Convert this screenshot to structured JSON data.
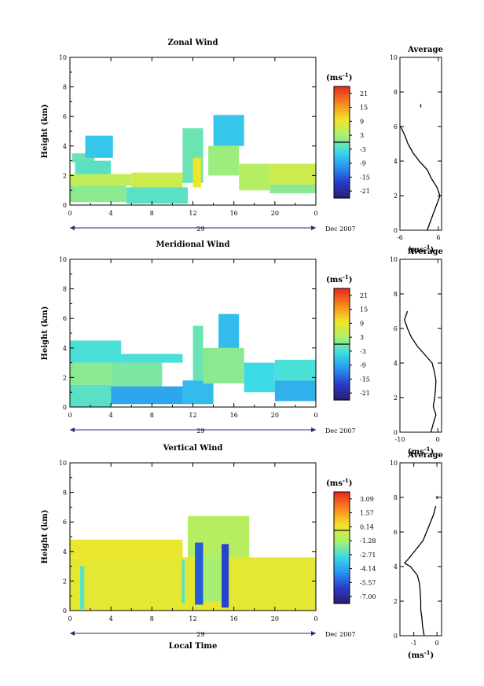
{
  "figure": {
    "date_label": "Dec 2007",
    "day_label": "29",
    "xlabel": "Local Time"
  },
  "chart_data": [
    {
      "id": "zonal",
      "type": "heatmap",
      "title": "Zonal Wind",
      "ylabel": "Height (km)",
      "xlabel": "",
      "x_ticks": [
        "0",
        "4",
        "8",
        "12",
        "16",
        "20",
        "0"
      ],
      "xlim": [
        0,
        24
      ],
      "ylim": [
        0,
        10
      ],
      "y_ticks": [
        "0",
        "2",
        "4",
        "6",
        "8",
        "10"
      ],
      "colorbar": {
        "unit": "(ms",
        "unit_exp": "-1",
        "unit_close": ")",
        "labels": [
          "21",
          "15",
          "9",
          "3",
          "-3",
          "-9",
          "-15",
          "-21"
        ],
        "range": [
          -24,
          24
        ]
      },
      "field": [
        {
          "x0": 0.2,
          "x1": 2.4,
          "y0": 2.9,
          "y1": 3.5,
          "v": -1
        },
        {
          "x0": 1.5,
          "x1": 4.2,
          "y0": 3.2,
          "y1": 4.7,
          "v": -6
        },
        {
          "x0": 0.5,
          "x1": 4.0,
          "y0": 2.1,
          "y1": 3.0,
          "v": -2
        },
        {
          "x0": 0.0,
          "x1": 6.0,
          "y0": 1.3,
          "y1": 2.1,
          "v": 5
        },
        {
          "x0": 6.0,
          "x1": 11.0,
          "y0": 1.2,
          "y1": 2.2,
          "v": 6
        },
        {
          "x0": 0.0,
          "x1": 5.5,
          "y0": 0.2,
          "y1": 1.3,
          "v": 1
        },
        {
          "x0": 5.5,
          "x1": 11.5,
          "y0": 0.1,
          "y1": 1.2,
          "v": -2
        },
        {
          "x0": 11.0,
          "x1": 13.0,
          "y0": 1.5,
          "y1": 5.2,
          "v": -1
        },
        {
          "x0": 12.0,
          "x1": 12.8,
          "y0": 1.2,
          "y1": 3.2,
          "v": 9
        },
        {
          "x0": 14.0,
          "x1": 17.0,
          "y0": 4.0,
          "y1": 6.1,
          "v": -6
        },
        {
          "x0": 13.5,
          "x1": 16.5,
          "y0": 2.0,
          "y1": 4.0,
          "v": 2
        },
        {
          "x0": 16.5,
          "x1": 19.5,
          "y0": 1.0,
          "y1": 2.8,
          "v": 4
        },
        {
          "x0": 19.5,
          "x1": 24.0,
          "y0": 1.4,
          "y1": 2.8,
          "v": 6
        },
        {
          "x0": 19.5,
          "x1": 24.0,
          "y0": 0.8,
          "y1": 1.4,
          "v": 1
        }
      ],
      "profile": {
        "title": "Average",
        "xlim": [
          -6,
          7
        ],
        "x_ticks": [
          -6,
          6
        ],
        "x_tick_labels": [
          "-6",
          "6"
        ],
        "xlabel": "(ms",
        "xlabel_exp": "-1",
        "xlabel_close": ")",
        "heights": [
          0.0,
          0.5,
          1.0,
          1.5,
          2.0,
          2.5,
          3.0,
          3.5,
          4.0,
          4.5,
          5.0,
          5.5,
          6.0,
          7.2
        ],
        "values": [
          2.5,
          3.5,
          4.5,
          5.5,
          6.5,
          5.5,
          3.8,
          2.5,
          0.0,
          -2.0,
          -3.5,
          -4.5,
          -5.8,
          0.5
        ]
      }
    },
    {
      "id": "meridional",
      "type": "heatmap",
      "title": "Meridional Wind",
      "ylabel": "Height (km)",
      "xlabel": "",
      "x_ticks": [
        "0",
        "4",
        "8",
        "12",
        "16",
        "20",
        "0"
      ],
      "xlim": [
        0,
        24
      ],
      "ylim": [
        0,
        10
      ],
      "y_ticks": [
        "0",
        "2",
        "4",
        "6",
        "8",
        "10"
      ],
      "colorbar": {
        "unit": "(ms",
        "unit_exp": "-1",
        "unit_close": ")",
        "labels": [
          "21",
          "15",
          "9",
          "3",
          "-3",
          "-9",
          "-15",
          "-21"
        ],
        "range": [
          -24,
          24
        ]
      },
      "field": [
        {
          "x0": 0.0,
          "x1": 5.0,
          "y0": 3.0,
          "y1": 4.5,
          "v": -3
        },
        {
          "x0": 5.0,
          "x1": 11.0,
          "y0": 3.0,
          "y1": 3.6,
          "v": -3
        },
        {
          "x0": 0.0,
          "x1": 4.0,
          "y0": 1.5,
          "y1": 3.0,
          "v": 1
        },
        {
          "x0": 4.0,
          "x1": 9.0,
          "y0": 1.4,
          "y1": 3.0,
          "v": 0
        },
        {
          "x0": 0.0,
          "x1": 4.0,
          "y0": 0.0,
          "y1": 1.5,
          "v": -2
        },
        {
          "x0": 4.0,
          "x1": 11.0,
          "y0": 0.2,
          "y1": 1.4,
          "v": -9
        },
        {
          "x0": 11.0,
          "x1": 14.0,
          "y0": 0.2,
          "y1": 1.8,
          "v": -7
        },
        {
          "x0": 12.0,
          "x1": 13.0,
          "y0": 1.8,
          "y1": 5.5,
          "v": -1
        },
        {
          "x0": 13.0,
          "x1": 17.0,
          "y0": 1.6,
          "y1": 4.0,
          "v": 1
        },
        {
          "x0": 14.5,
          "x1": 16.5,
          "y0": 4.0,
          "y1": 6.3,
          "v": -7
        },
        {
          "x0": 17.0,
          "x1": 20.0,
          "y0": 1.0,
          "y1": 3.0,
          "v": -4
        },
        {
          "x0": 20.0,
          "x1": 24.0,
          "y0": 1.8,
          "y1": 3.2,
          "v": -3
        },
        {
          "x0": 20.0,
          "x1": 24.0,
          "y0": 0.4,
          "y1": 1.8,
          "v": -8
        }
      ],
      "profile": {
        "title": "Average",
        "xlim": [
          -10,
          1
        ],
        "x_ticks": [
          -10,
          0
        ],
        "x_tick_labels": [
          "-10",
          "0"
        ],
        "xlabel": "(ms",
        "xlabel_exp": "-1",
        "xlabel_close": ")",
        "heights": [
          0.0,
          0.5,
          1.0,
          1.5,
          2.0,
          2.5,
          3.0,
          3.5,
          4.0,
          4.5,
          5.0,
          5.5,
          6.0,
          6.5,
          7.0
        ],
        "values": [
          -1.8,
          -1.2,
          -0.5,
          -1.2,
          -0.8,
          -0.6,
          -0.5,
          -0.9,
          -1.5,
          -3.5,
          -5.5,
          -7.0,
          -8.0,
          -8.8,
          -8.0
        ]
      }
    },
    {
      "id": "vertical",
      "type": "heatmap",
      "title": "Vertical Wind",
      "ylabel": "Height (km)",
      "xlabel": "Local Time",
      "x_ticks": [
        "0",
        "4",
        "8",
        "12",
        "16",
        "20",
        "0"
      ],
      "xlim": [
        0,
        24
      ],
      "ylim": [
        0,
        10
      ],
      "y_ticks": [
        "0",
        "2",
        "4",
        "6",
        "8",
        "10"
      ],
      "colorbar": {
        "unit": "(ms",
        "unit_exp": "-1",
        "unit_close": ")",
        "labels": [
          "3.09",
          "1.57",
          "0.14",
          "-1.28",
          "-2.71",
          "-4.14",
          "-5.57",
          "-7.00"
        ],
        "range": [
          -8.43,
          4.43
        ]
      },
      "field": [
        {
          "x0": 0.0,
          "x1": 24.0,
          "y0": 0.0,
          "y1": 3.6,
          "v": 0.3
        },
        {
          "x0": 0.0,
          "x1": 11.0,
          "y0": 3.6,
          "y1": 4.8,
          "v": 0.4
        },
        {
          "x0": 11.5,
          "x1": 17.5,
          "y0": 3.6,
          "y1": 6.4,
          "v": -0.9
        },
        {
          "x0": 1.0,
          "x1": 1.4,
          "y0": 0.1,
          "y1": 3.0,
          "v": -2.6
        },
        {
          "x0": 10.9,
          "x1": 11.2,
          "y0": 0.5,
          "y1": 3.4,
          "v": -2.5
        },
        {
          "x0": 12.2,
          "x1": 13.0,
          "y0": 0.4,
          "y1": 4.6,
          "v": -6.0
        },
        {
          "x0": 14.8,
          "x1": 15.5,
          "y0": 0.2,
          "y1": 4.5,
          "v": -6.5
        },
        {
          "x0": 13.0,
          "x1": 14.8,
          "y0": 0.6,
          "y1": 3.6,
          "v": -1.3
        }
      ],
      "profile": {
        "title": "Average",
        "xlim": [
          -1.6,
          0.2
        ],
        "x_ticks": [
          -1,
          0
        ],
        "x_tick_labels": [
          "-1",
          "0"
        ],
        "xlabel": "(ms",
        "xlabel_exp": "-1",
        "xlabel_close": ")",
        "heights": [
          0.0,
          0.5,
          1.0,
          1.5,
          2.0,
          2.5,
          3.0,
          3.5,
          4.0,
          4.2,
          4.5,
          5.0,
          5.5,
          6.0,
          6.5,
          7.0,
          7.5,
          8.0
        ],
        "values": [
          -0.55,
          -0.62,
          -0.65,
          -0.7,
          -0.7,
          -0.72,
          -0.75,
          -0.85,
          -1.15,
          -1.4,
          -1.2,
          -0.9,
          -0.6,
          -0.45,
          -0.3,
          -0.15,
          -0.05,
          0.0
        ]
      }
    }
  ]
}
